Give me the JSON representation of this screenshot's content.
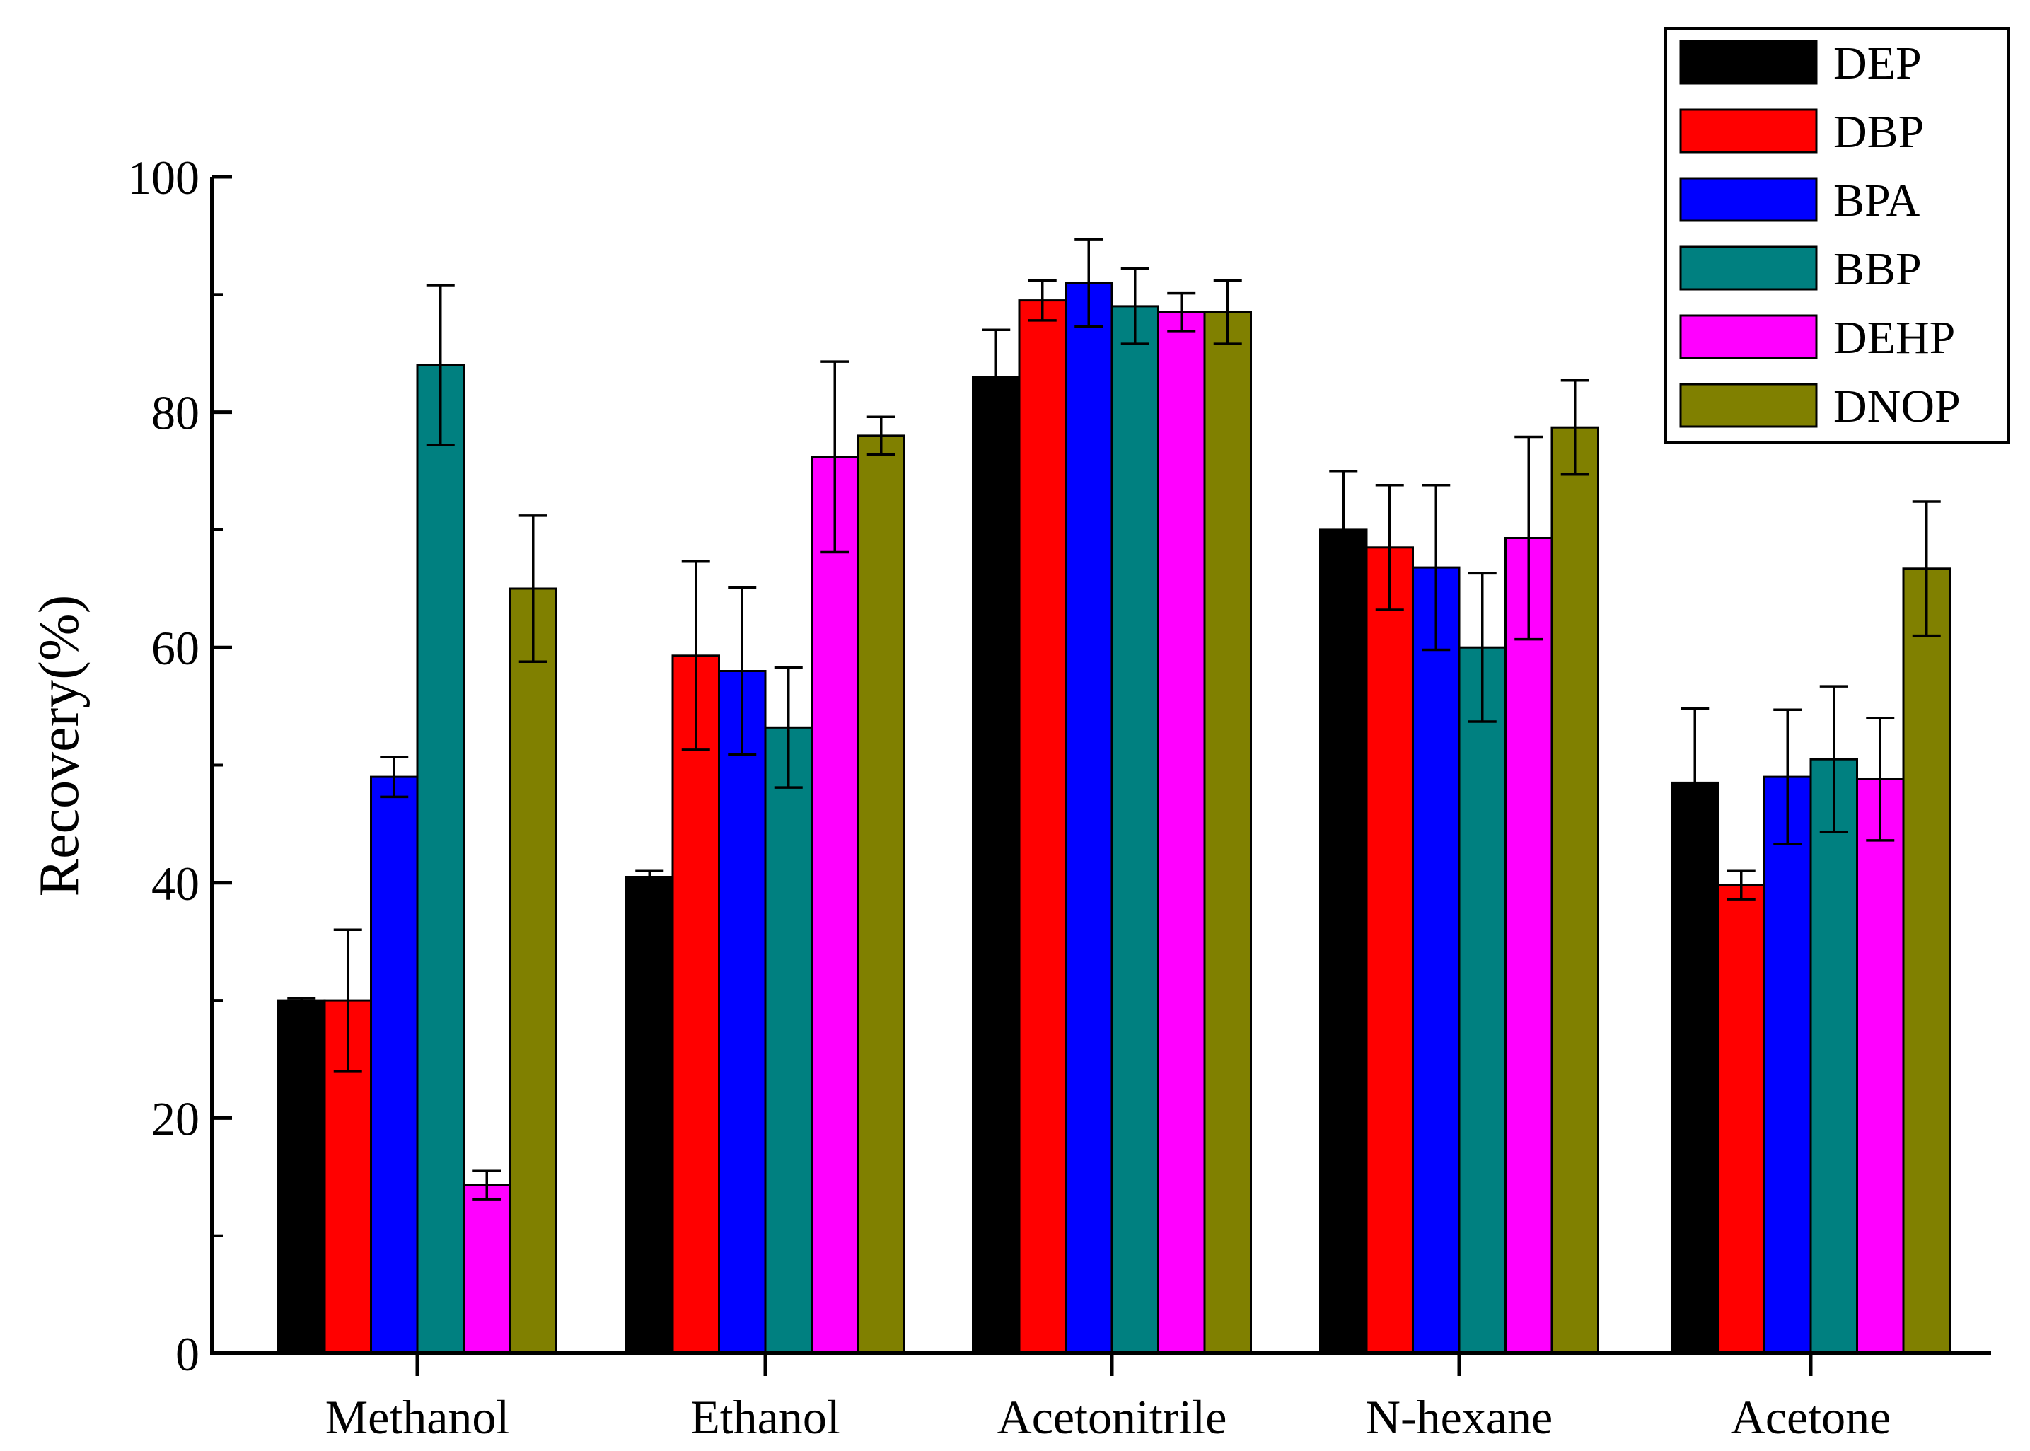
{
  "chart_data": {
    "type": "bar",
    "title": "",
    "xlabel": "",
    "ylabel": "Recovery(%)",
    "ylim": [
      0,
      100
    ],
    "yticks": [
      0,
      20,
      40,
      60,
      80,
      100
    ],
    "grid": false,
    "legend_position": "top-right",
    "categories": [
      "Methanol",
      "Ethanol",
      "Acetonitrile",
      "N-hexane",
      "Acetone"
    ],
    "series": [
      {
        "name": "DEP",
        "color": "#000000",
        "values": [
          30,
          40.5,
          83,
          70,
          48.5
        ],
        "errors": [
          0.2,
          0.5,
          4,
          5,
          6.3
        ]
      },
      {
        "name": "DBP",
        "color": "#ff0000",
        "values": [
          30,
          59.3,
          89.5,
          68.5,
          39.8
        ],
        "errors": [
          6,
          8,
          1.7,
          5.3,
          1.2
        ]
      },
      {
        "name": "BPA",
        "color": "#0000ff",
        "values": [
          49,
          58,
          91,
          66.8,
          49
        ],
        "errors": [
          1.7,
          7.1,
          3.7,
          7,
          5.7
        ]
      },
      {
        "name": "BBP",
        "color": "#008080",
        "values": [
          84,
          53.2,
          89,
          60,
          50.5
        ],
        "errors": [
          6.8,
          5.1,
          3.2,
          6.3,
          6.2
        ]
      },
      {
        "name": "DEHP",
        "color": "#ff00ff",
        "values": [
          14.3,
          76.2,
          88.5,
          69.3,
          48.8
        ],
        "errors": [
          1.2,
          8.1,
          1.6,
          8.6,
          5.2
        ]
      },
      {
        "name": "DNOP",
        "color": "#808000",
        "values": [
          65,
          78,
          88.5,
          78.7,
          66.7
        ],
        "errors": [
          6.2,
          1.6,
          2.7,
          4,
          5.7
        ]
      }
    ]
  }
}
